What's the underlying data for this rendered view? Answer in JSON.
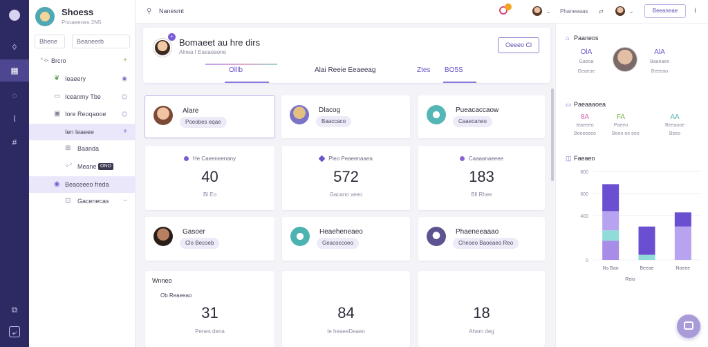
{
  "app": {
    "brand_title": "Shoess",
    "brand_subtitle": "Pnoaeenes 2N5"
  },
  "sidebar": {
    "search_value": "Bhene",
    "filter_value": "Beaneerb",
    "tree": [
      {
        "label": "Brcro",
        "icon": "+ chevrons-icon",
        "trail": "+"
      },
      {
        "label": "Ieaeery",
        "icon": "leaf-icon",
        "trail": "dot"
      },
      {
        "label": "Iceanmy Tbe",
        "icon": "chat-icon",
        "trail": "dot"
      },
      {
        "label": "Iore Reoqaooe",
        "icon": "monitor-icon",
        "trail": "dot"
      },
      {
        "label": "Ien leaeee",
        "icon": "",
        "trail": "+"
      },
      {
        "label": "Baanda",
        "icon": "grid-icon",
        "trail": ""
      },
      {
        "label": "Meane",
        "icon": "link-icon",
        "trail": "pill",
        "pill": "ONO"
      },
      {
        "label": "Beaceeeo freda",
        "icon": "circle-icon",
        "trail": ""
      },
      {
        "label": "Gacenecas",
        "icon": "frame-icon",
        "trail": "~"
      }
    ]
  },
  "topbar": {
    "breadcrumb": "Nanesmt",
    "user1_label": "Phaneeaas",
    "button_label": "Beeaneae"
  },
  "header": {
    "title": "Bomaeet au hre dirs",
    "subtitle": "Alnea I  Eaeaeaone",
    "button_label": "Oeeeo Cl",
    "tabs": [
      {
        "label": "Olllb",
        "style": "purple"
      },
      {
        "label": "Alai  Reeie Eeaeeag",
        "style": "normal"
      },
      {
        "label": "Ztes",
        "style": "purple"
      },
      {
        "label": "BO5S",
        "style": "purple"
      }
    ]
  },
  "people_row1": [
    {
      "name": "Alare",
      "tag": "Poeobes eqae"
    },
    {
      "name": "Dlacog",
      "tag": "Baaccaco"
    },
    {
      "name": "Pueacaccaow",
      "tag": "Caaecaneo"
    }
  ],
  "stats_row": [
    {
      "title": "He Caeeneenany",
      "value": "40",
      "foot": "Bl Eo"
    },
    {
      "title": "Pleo Peaeenaaea",
      "value": "572",
      "foot": "Gacano veeo"
    },
    {
      "title": "Caaaanaeeee",
      "value": "183",
      "foot": "Bll Rhee"
    }
  ],
  "people_row2": [
    {
      "name": "Gasoer",
      "tag": "Clo Becoeb"
    },
    {
      "name": "Heaeheneaeo",
      "tag": "Geacoccoeo"
    },
    {
      "name": "Phaeneeaaao",
      "tag": "Cheoeo Baoeaeo Reo"
    }
  ],
  "bottom_row": [
    {
      "label": "Wnneo",
      "sublabel": "Ob Reaeeao",
      "value": "31",
      "foot": "Penes dena"
    },
    {
      "label": "",
      "sublabel": "",
      "value": "84",
      "foot": "Ie heaeeDeaeo"
    },
    {
      "label": "",
      "sublabel": "",
      "value": "18",
      "foot": "Ahem deg"
    }
  ],
  "right_panel": {
    "section1_title": "Paaneos",
    "s1_left_value": "OlA",
    "s1_left_lbl1": "Gaeoa",
    "s1_left_lbl2": "Geaeoe",
    "s1_right_value": "AlA",
    "s1_right_lbl1": "Baaeaee",
    "s1_right_lbl2": "Beeeao",
    "section2_title": "Paeaaaoea",
    "metrics": [
      {
        "value": "8A",
        "label": "Ieaeeeo",
        "sub": "Beeeeeeo",
        "color": "#d062b6"
      },
      {
        "value": "FA",
        "label": "Paeeo",
        "sub": "Beeo oe eee",
        "color": "#7fb34a"
      },
      {
        "value": "AA",
        "label": "Beeaooe",
        "sub": "Beeo",
        "color": "#55b4b4"
      }
    ],
    "section3_title": "Faeaeo"
  },
  "chart_data": {
    "type": "bar",
    "stacked": true,
    "title": "Faeaeo",
    "y_tick_labels": [
      "800",
      "600",
      "400",
      "0"
    ],
    "categories": [
      "Ns Bao",
      "Beeae",
      "Noeee"
    ],
    "extra_label": "Reio",
    "series": [
      {
        "color": "#a78de8",
        "values": [
          30,
          0,
          0
        ]
      },
      {
        "color": "#8fdcd8",
        "values": [
          16,
          8,
          0
        ]
      },
      {
        "color": "#b7a3f0",
        "values": [
          30,
          0,
          52
        ]
      },
      {
        "color": "#6a4fd0",
        "values": [
          42,
          44,
          22
        ]
      }
    ],
    "grid": true
  }
}
